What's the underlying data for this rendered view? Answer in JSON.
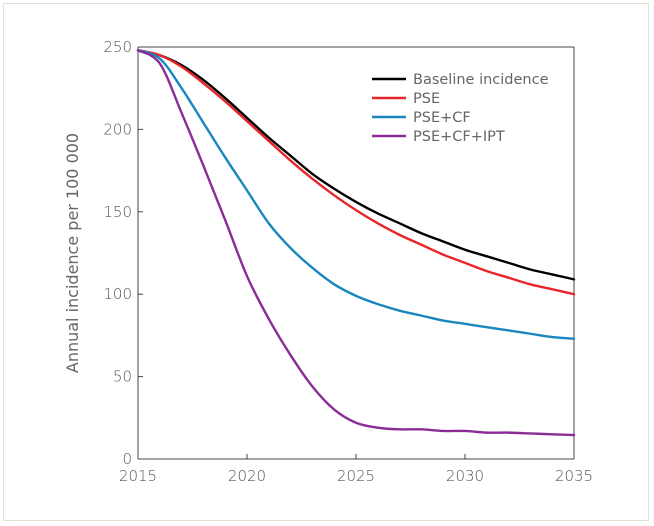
{
  "chart_data": {
    "type": "line",
    "title": "",
    "xlabel": "",
    "ylabel": "Annual incidence per 100 000",
    "xlim": [
      2015,
      2035
    ],
    "ylim": [
      0,
      250
    ],
    "x_ticks": [
      "2015",
      "2020",
      "2025",
      "2030",
      "2035"
    ],
    "y_ticks": [
      "0",
      "50",
      "100",
      "150",
      "200",
      "250"
    ],
    "legend_position": "top-right",
    "grid": false,
    "series": [
      {
        "name": "Baseline incidence",
        "color": "#000000",
        "x": [
          2015,
          2016,
          2017,
          2018,
          2019,
          2020,
          2021,
          2022,
          2023,
          2024,
          2025,
          2026,
          2027,
          2028,
          2029,
          2030,
          2031,
          2032,
          2033,
          2034,
          2035
        ],
        "y": [
          248,
          245,
          239,
          230,
          219,
          207,
          195,
          184,
          173,
          164,
          156,
          149,
          143,
          137,
          132,
          127,
          123,
          119,
          115,
          112,
          109
        ]
      },
      {
        "name": "PSE",
        "color": "#e8262a",
        "x": [
          2015,
          2016,
          2017,
          2018,
          2019,
          2020,
          2021,
          2022,
          2023,
          2024,
          2025,
          2026,
          2027,
          2028,
          2029,
          2030,
          2031,
          2032,
          2033,
          2034,
          2035
        ],
        "y": [
          248,
          245,
          238,
          228,
          217,
          205,
          193,
          181,
          170,
          160,
          151,
          143,
          136,
          130,
          124,
          119,
          114,
          110,
          106,
          103,
          100
        ]
      },
      {
        "name": "PSE+CF",
        "color": "#1a86be",
        "x": [
          2015,
          2016,
          2017,
          2018,
          2019,
          2020,
          2021,
          2022,
          2023,
          2024,
          2025,
          2026,
          2027,
          2028,
          2029,
          2030,
          2031,
          2032,
          2033,
          2034,
          2035
        ],
        "y": [
          248,
          243,
          225,
          204,
          183,
          163,
          143,
          128,
          116,
          106,
          99,
          94,
          90,
          87,
          84,
          82,
          80,
          78,
          76,
          74,
          73
        ]
      },
      {
        "name": "PSE+CF+IPT",
        "color": "#8a2c96",
        "x": [
          2015,
          2016,
          2017,
          2018,
          2019,
          2020,
          2021,
          2022,
          2023,
          2024,
          2025,
          2026,
          2027,
          2028,
          2029,
          2030,
          2031,
          2032,
          2033,
          2034,
          2035
        ],
        "y": [
          248,
          240,
          210,
          178,
          145,
          111,
          85,
          63,
          44,
          30,
          22,
          19,
          18,
          18,
          17,
          17,
          16,
          16,
          15.5,
          15,
          14.5
        ]
      }
    ]
  }
}
